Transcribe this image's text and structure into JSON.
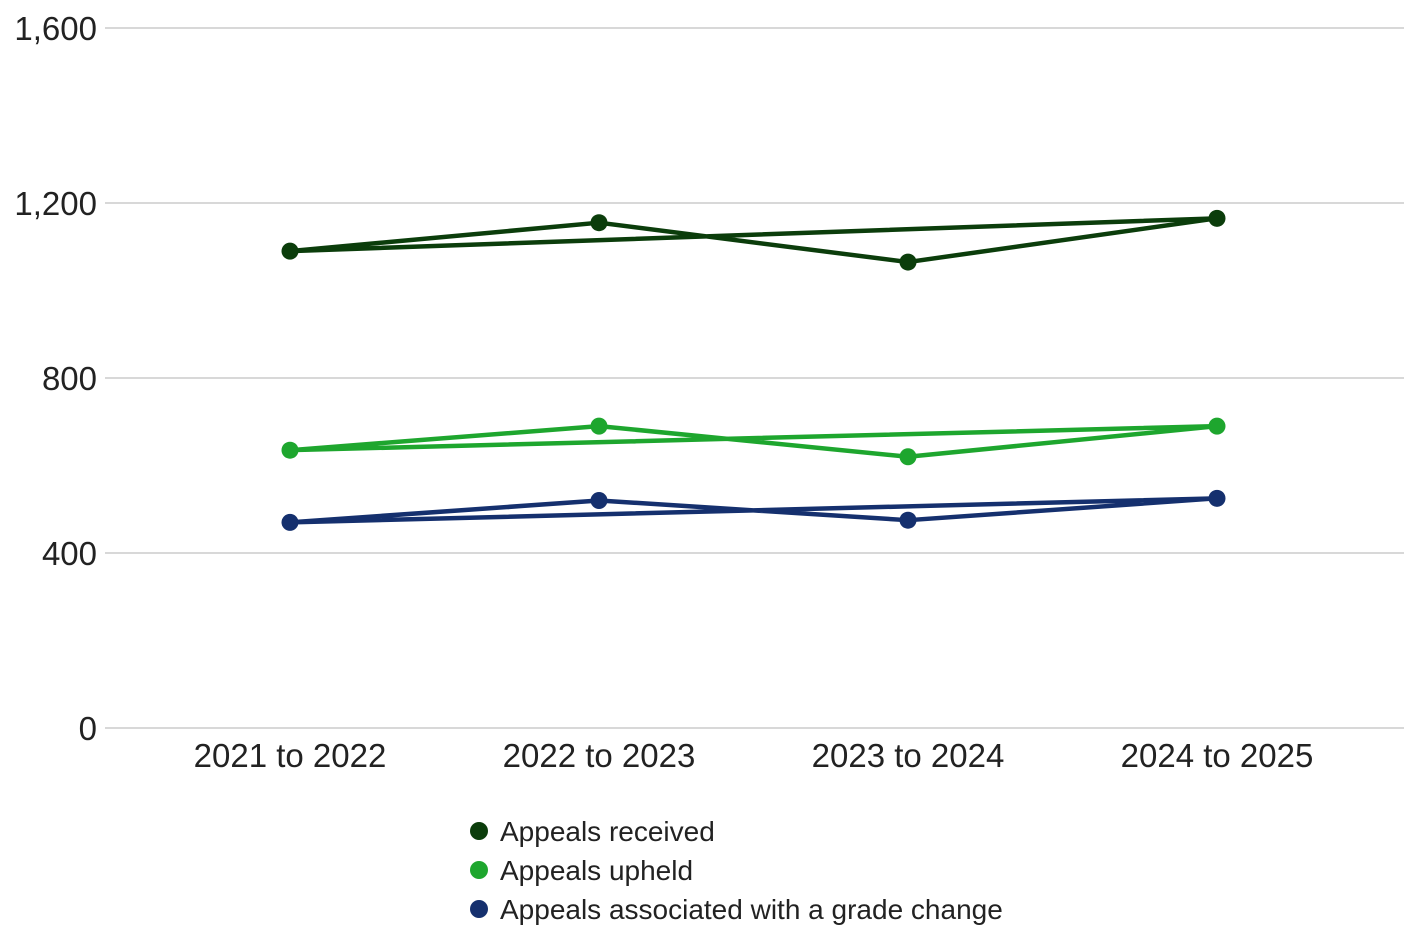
{
  "chart_data": {
    "type": "line",
    "title": "",
    "xlabel": "",
    "ylabel": "",
    "categories": [
      "2021 to 2022",
      "2022 to 2023",
      "2023 to 2024",
      "2024 to 2025"
    ],
    "ylim": [
      0,
      1600
    ],
    "yticks": [
      0,
      400,
      800,
      1200,
      1600
    ],
    "ytick_labels": [
      "0",
      "400",
      "800",
      "1,200",
      "1,600"
    ],
    "grid": true,
    "legend_position": "bottom-center",
    "series": [
      {
        "name": "Appeals received",
        "color": "#0b3d0b",
        "values": [
          1090,
          1155,
          1065,
          1165
        ]
      },
      {
        "name": "Appeals upheld",
        "color": "#1ea62e",
        "values": [
          635,
          690,
          620,
          690
        ]
      },
      {
        "name": "Appeals associated with a grade change",
        "color": "#15306e",
        "values": [
          470,
          520,
          475,
          525
        ]
      }
    ]
  }
}
